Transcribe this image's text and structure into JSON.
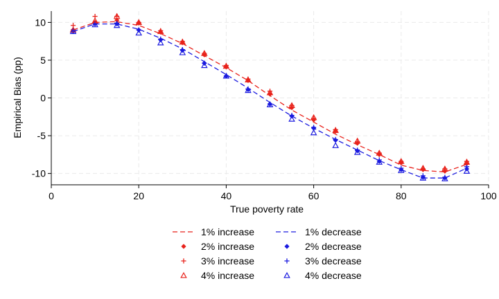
{
  "chart_data": {
    "type": "line",
    "xlabel": "True poverty rate",
    "ylabel": "Empirical Bias (pp)",
    "xlim": [
      0,
      100
    ],
    "ylim": [
      -11.5,
      11.5
    ],
    "xticks": [
      0,
      20,
      40,
      60,
      80,
      100
    ],
    "yticks": [
      10,
      5,
      0,
      -5,
      -10
    ],
    "grid": true,
    "legend_position": "bottom",
    "x": [
      5,
      10,
      15,
      20,
      25,
      30,
      35,
      40,
      45,
      50,
      55,
      60,
      65,
      70,
      75,
      80,
      85,
      90,
      95
    ],
    "series": [
      {
        "name": "1% increase",
        "color": "#e8221b",
        "style": "dashed-line",
        "values": [
          9.0,
          10.0,
          10.1,
          9.6,
          8.5,
          7.2,
          5.6,
          4.0,
          2.3,
          0.3,
          -1.6,
          -3.2,
          -4.8,
          -6.2,
          -7.5,
          -8.9,
          -9.6,
          -9.8,
          -8.8
        ]
      },
      {
        "name": "1% decrease",
        "color": "#1a1adf",
        "style": "dashed-line",
        "values": [
          8.8,
          9.8,
          9.8,
          9.1,
          7.9,
          6.5,
          4.8,
          3.1,
          1.3,
          -0.6,
          -2.4,
          -4.0,
          -5.5,
          -6.9,
          -8.3,
          -9.5,
          -10.6,
          -10.6,
          -9.3
        ]
      },
      {
        "name": "2% increase",
        "color": "#e8221b",
        "style": "diamond",
        "values": [
          9.0,
          10.0,
          10.3,
          9.9,
          8.7,
          7.3,
          5.7,
          4.1,
          2.3,
          0.5,
          -1.3,
          -2.9,
          -4.4,
          -6.0,
          -7.5,
          -8.6,
          -9.5,
          -9.7,
          -8.7
        ]
      },
      {
        "name": "2% decrease",
        "color": "#1a1adf",
        "style": "diamond",
        "values": [
          8.8,
          9.8,
          9.8,
          9.0,
          7.7,
          6.3,
          4.6,
          2.9,
          1.1,
          -0.8,
          -2.4,
          -4.0,
          -5.6,
          -7.0,
          -8.4,
          -9.5,
          -10.5,
          -10.6,
          -9.4
        ]
      },
      {
        "name": "3% increase",
        "color": "#e8221b",
        "style": "plus",
        "values": [
          9.6,
          10.8,
          10.8,
          10.0,
          8.9,
          7.5,
          5.9,
          4.3,
          2.5,
          0.9,
          -1.0,
          -2.7,
          -4.2,
          -5.8,
          -7.3,
          -8.4,
          -9.4,
          -9.4,
          -8.4
        ]
      },
      {
        "name": "3% decrease",
        "color": "#1a1adf",
        "style": "plus",
        "values": [
          9.0,
          9.8,
          9.9,
          9.0,
          7.8,
          6.4,
          4.6,
          2.9,
          1.2,
          -0.8,
          -2.3,
          -3.9,
          -5.5,
          -6.9,
          -8.2,
          -9.3,
          -10.3,
          -10.5,
          -9.1
        ]
      },
      {
        "name": "4% increase",
        "color": "#e8221b",
        "style": "triangle",
        "values": [
          9.0,
          10.2,
          10.8,
          10.0,
          8.8,
          7.4,
          5.9,
          4.2,
          2.4,
          0.7,
          -1.0,
          -2.6,
          -4.3,
          -5.7,
          -7.3,
          -8.4,
          -9.3,
          -9.4,
          -8.5
        ]
      },
      {
        "name": "4% decrease",
        "color": "#1a1adf",
        "style": "triangle",
        "values": [
          8.8,
          9.7,
          9.6,
          8.6,
          7.3,
          6.0,
          4.3,
          2.9,
          1.0,
          -0.9,
          -2.8,
          -4.6,
          -6.3,
          -7.2,
          -8.5,
          -9.6,
          -10.6,
          -10.7,
          -9.7
        ]
      }
    ]
  }
}
